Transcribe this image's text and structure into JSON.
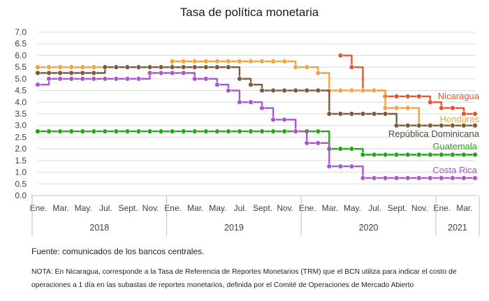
{
  "chart_data": {
    "type": "line",
    "title": "Tasa de política monetaria",
    "ylim": [
      0,
      7
    ],
    "y_ticks": [
      "0.0",
      "0.5",
      "1.0",
      "1.5",
      "2.0",
      "2.5",
      "3.0",
      "3.5",
      "4.0",
      "4.5",
      "5.0",
      "5.5",
      "6.0",
      "6.5",
      "7.0"
    ],
    "grid": true,
    "x_tick_labels": [
      "Ene.",
      "Mar.",
      "May.",
      "Jul.",
      "Sept.",
      "Nov.",
      "Ene.",
      "Mar.",
      "May.",
      "Jul.",
      "Sept.",
      "Nov.",
      "Ene.",
      "Mar.",
      "May.",
      "Jul.",
      "Sept.",
      "Nov.",
      "Ene.",
      "Mar."
    ],
    "x_tick_months": [
      0,
      2,
      4,
      6,
      8,
      10,
      12,
      14,
      16,
      18,
      20,
      22,
      24,
      26,
      28,
      30,
      32,
      34,
      36,
      38
    ],
    "years": [
      {
        "label": "2018",
        "from": 0,
        "to": 12
      },
      {
        "label": "2019",
        "from": 12,
        "to": 24
      },
      {
        "label": "2020",
        "from": 24,
        "to": 36
      },
      {
        "label": "2021",
        "from": 36,
        "to": 40
      }
    ],
    "x_range": [
      0,
      39
    ],
    "series": [
      {
        "name": "Nicaragua",
        "color": "#e4572e",
        "start": 27,
        "values": [
          6.0,
          5.5,
          4.5,
          4.5,
          4.25,
          4.25,
          4.25,
          4.25,
          4.0,
          3.75,
          3.75,
          3.5,
          3.5
        ]
      },
      {
        "name": "Honduras",
        "color": "#f4a340",
        "start": 0,
        "values": [
          5.5,
          5.5,
          5.5,
          5.5,
          5.5,
          5.5,
          5.5,
          5.5,
          5.5,
          5.5,
          5.5,
          5.5,
          5.75,
          5.75,
          5.75,
          5.75,
          5.75,
          5.75,
          5.75,
          5.75,
          5.75,
          5.75,
          5.75,
          5.5,
          5.5,
          5.25,
          4.5,
          4.5,
          4.5,
          4.5,
          4.5,
          3.75,
          3.75,
          3.75,
          3.0,
          3.0,
          3.0,
          3.0,
          3.0,
          3.0
        ]
      },
      {
        "name": "República Dominicana",
        "color": "#7a5a3c",
        "start": 0,
        "values": [
          5.25,
          5.25,
          5.25,
          5.25,
          5.25,
          5.25,
          5.5,
          5.5,
          5.5,
          5.5,
          5.5,
          5.5,
          5.5,
          5.5,
          5.5,
          5.5,
          5.5,
          5.5,
          5.0,
          4.75,
          4.5,
          4.5,
          4.5,
          4.5,
          4.5,
          4.5,
          3.5,
          3.5,
          3.5,
          3.5,
          3.5,
          3.5,
          3.0,
          3.0,
          3.0,
          3.0,
          3.0,
          3.0,
          3.0,
          3.0
        ]
      },
      {
        "name": "Guatemala",
        "color": "#24a516",
        "start": 0,
        "values": [
          2.75,
          2.75,
          2.75,
          2.75,
          2.75,
          2.75,
          2.75,
          2.75,
          2.75,
          2.75,
          2.75,
          2.75,
          2.75,
          2.75,
          2.75,
          2.75,
          2.75,
          2.75,
          2.75,
          2.75,
          2.75,
          2.75,
          2.75,
          2.75,
          2.75,
          2.75,
          2.0,
          2.0,
          2.0,
          1.75,
          1.75,
          1.75,
          1.75,
          1.75,
          1.75,
          1.75,
          1.75,
          1.75,
          1.75,
          1.75
        ]
      },
      {
        "name": "Costa Rica",
        "color": "#a855cf",
        "start": 0,
        "values": [
          4.75,
          5.0,
          5.0,
          5.0,
          5.0,
          5.0,
          5.0,
          5.0,
          5.0,
          5.0,
          5.25,
          5.25,
          5.25,
          5.25,
          5.0,
          5.0,
          4.75,
          4.5,
          4.0,
          4.0,
          3.75,
          3.25,
          3.25,
          2.75,
          2.25,
          2.25,
          1.25,
          1.25,
          1.25,
          0.75,
          0.75,
          0.75,
          0.75,
          0.75,
          0.75,
          0.75,
          0.75,
          0.75,
          0.75,
          0.75
        ]
      }
    ]
  },
  "footer": {
    "source": "Fuente: comunicados de los bancos centrales.",
    "note": "NOTA: En Nicaragua, corresponde a la Tasa de Referencia de Reportes Monetarios (TRM) que el BCN utiliza para indicar el costo de operaciones a 1 día en las subastas de reportes monetarios, definida por el Comité de Operaciones de Mercado Abierto"
  }
}
